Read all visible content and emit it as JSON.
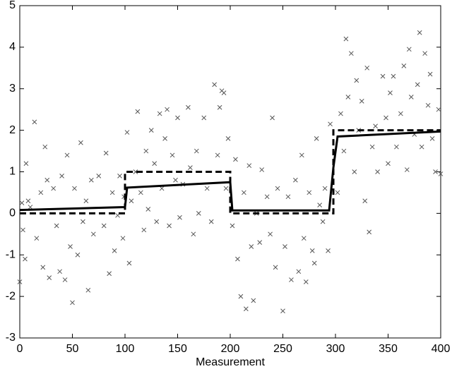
{
  "chart_data": {
    "type": "scatter",
    "x_label": "Measurement",
    "xlim": [
      0,
      400
    ],
    "xticks": [
      0,
      50,
      100,
      150,
      200,
      250,
      300,
      350,
      400
    ],
    "ylim": [
      -3,
      5
    ],
    "yticks": [
      -3,
      -2,
      -1,
      0,
      1,
      2,
      3,
      4,
      5
    ],
    "grid": false,
    "series": [
      {
        "mode": "markers",
        "marker": "x",
        "color": "#555555",
        "x": [
          0,
          2,
          3,
          5,
          6,
          8,
          10,
          14,
          16,
          20,
          22,
          24,
          26,
          28,
          32,
          35,
          38,
          40,
          43,
          45,
          48,
          50,
          52,
          55,
          58,
          60,
          63,
          65,
          68,
          70,
          75,
          80,
          82,
          85,
          88,
          90,
          93,
          95,
          98,
          99,
          102,
          104,
          106,
          110,
          112,
          115,
          118,
          120,
          122,
          125,
          128,
          130,
          133,
          135,
          138,
          140,
          142,
          145,
          148,
          150,
          152,
          155,
          160,
          162,
          165,
          168,
          170,
          175,
          178,
          182,
          185,
          188,
          190,
          192,
          194,
          196,
          198,
          202,
          205,
          207,
          210,
          213,
          215,
          218,
          220,
          222,
          225,
          228,
          230,
          235,
          238,
          240,
          243,
          245,
          250,
          252,
          255,
          258,
          262,
          265,
          268,
          270,
          272,
          275,
          278,
          280,
          282,
          285,
          288,
          290,
          293,
          295,
          302,
          305,
          308,
          310,
          312,
          315,
          318,
          320,
          322,
          325,
          328,
          330,
          332,
          335,
          338,
          340,
          345,
          348,
          350,
          352,
          355,
          358,
          362,
          365,
          368,
          370,
          372,
          375,
          378,
          380,
          382,
          385,
          388,
          390,
          392,
          395,
          398,
          400
        ],
        "values": [
          -1.65,
          0.25,
          -0.4,
          -1.1,
          1.2,
          0.3,
          0.15,
          2.2,
          -0.6,
          0.5,
          -1.3,
          1.6,
          0.8,
          -1.55,
          0.6,
          -0.3,
          -1.4,
          0.9,
          -1.6,
          1.4,
          -0.8,
          -2.15,
          0.6,
          -1.0,
          1.7,
          -0.2,
          0.3,
          -1.85,
          0.8,
          -0.5,
          0.9,
          -0.3,
          1.45,
          -1.45,
          0.5,
          -0.9,
          -0.05,
          0.9,
          -0.6,
          0.4,
          1.95,
          -1.2,
          0.3,
          1.0,
          2.45,
          0.5,
          -0.4,
          1.5,
          0.1,
          2.0,
          1.2,
          -0.2,
          2.4,
          0.6,
          1.8,
          2.5,
          -0.3,
          1.4,
          0.8,
          2.3,
          -0.1,
          0.7,
          2.55,
          1.1,
          -0.5,
          1.5,
          0.0,
          2.3,
          0.6,
          -0.2,
          3.1,
          1.4,
          2.55,
          2.95,
          2.9,
          0.6,
          1.8,
          -0.3,
          1.3,
          -1.1,
          -2.0,
          0.5,
          -2.3,
          1.15,
          -0.8,
          -2.1,
          0.0,
          -0.7,
          1.05,
          0.4,
          -0.5,
          2.3,
          -1.3,
          0.6,
          -2.35,
          -0.8,
          0.4,
          -1.6,
          0.8,
          -1.4,
          1.4,
          -0.6,
          -1.65,
          0.5,
          -0.9,
          -1.2,
          1.8,
          0.2,
          -0.2,
          0.6,
          -0.9,
          2.15,
          0.5,
          2.4,
          1.5,
          4.2,
          2.8,
          3.85,
          1.0,
          3.2,
          2.0,
          2.7,
          0.3,
          3.5,
          -0.45,
          1.6,
          2.1,
          1.0,
          3.3,
          2.3,
          1.2,
          2.9,
          3.3,
          1.6,
          2.4,
          3.55,
          1.05,
          3.95,
          2.8,
          1.9,
          3.1,
          4.35,
          1.6,
          3.85,
          2.6,
          3.35,
          1.8,
          1.0,
          2.5,
          0.95
        ]
      },
      {
        "mode": "line",
        "dash": true,
        "color": "#000000",
        "x": [
          0,
          100,
          100,
          200,
          200,
          298,
          298,
          400
        ],
        "values": [
          0,
          0,
          1,
          1,
          0,
          0,
          2,
          2
        ]
      },
      {
        "mode": "line",
        "dash": false,
        "color": "#000000",
        "x": [
          0,
          100,
          102,
          200,
          202,
          294,
          298,
          302,
          400
        ],
        "values": [
          0.08,
          0.15,
          0.62,
          0.75,
          0.07,
          0.07,
          1.1,
          1.85,
          1.97
        ]
      }
    ]
  }
}
